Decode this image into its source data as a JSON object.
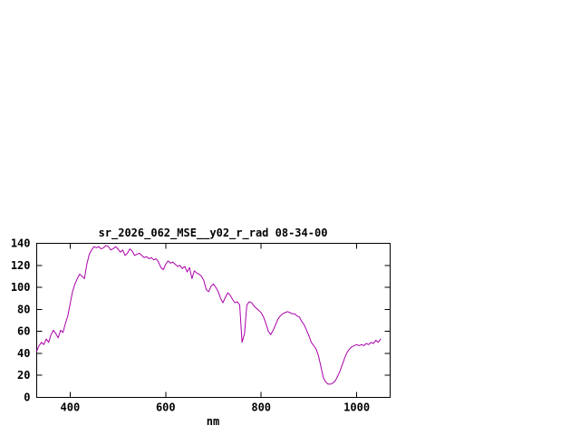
{
  "chart_data": {
    "type": "line",
    "title": "sr_2026_062_MSE__y02_r_rad 08-34-00",
    "xlabel": "nm",
    "ylabel": "",
    "xlim": [
      330,
      1070
    ],
    "ylim": [
      0,
      140
    ],
    "xticks": [
      400,
      600,
      800,
      1000
    ],
    "yticks": [
      0,
      20,
      40,
      60,
      80,
      100,
      120,
      140
    ],
    "grid": false,
    "legend": false,
    "line_color": "#aa00aa",
    "axis_color": "#000000",
    "background_color": "#ffffff",
    "series": [
      {
        "x_start": 330,
        "x_step": 5,
        "y": [
          42,
          47,
          50,
          48,
          53,
          50,
          57,
          61,
          58,
          54,
          61,
          59,
          67,
          74,
          85,
          96,
          103,
          108,
          112,
          110,
          108,
          121,
          130,
          134,
          137,
          136,
          137,
          135,
          136,
          138,
          137,
          134,
          135,
          137,
          135,
          132,
          134,
          129,
          131,
          135,
          133,
          129,
          130,
          131,
          129,
          127,
          128,
          126,
          127,
          125,
          126,
          123,
          118,
          116,
          121,
          124,
          122,
          123,
          121,
          119,
          120,
          117,
          119,
          114,
          118,
          108,
          115,
          113,
          112,
          110,
          106,
          98,
          96,
          101,
          103,
          100,
          96,
          90,
          86,
          91,
          95,
          93,
          89,
          86,
          87,
          84,
          50,
          58,
          84,
          87,
          86,
          83,
          81,
          79,
          77,
          73,
          67,
          60,
          57,
          61,
          66,
          71,
          74,
          76,
          77,
          78,
          77,
          76,
          76,
          74,
          73,
          69,
          66,
          61,
          56,
          50,
          47,
          44,
          38,
          28,
          18,
          14,
          12,
          12,
          13,
          15,
          19,
          24,
          30,
          36,
          41,
          44,
          46,
          47,
          48,
          47,
          48,
          47,
          49,
          48,
          50,
          49,
          52,
          50,
          53
        ]
      }
    ]
  }
}
